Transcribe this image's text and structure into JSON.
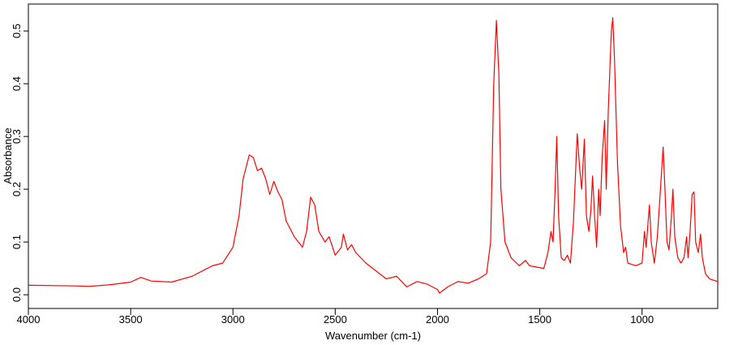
{
  "chart_data": {
    "type": "line",
    "xlabel": "Wavenumber (cm-1)",
    "ylabel": "Absorbance",
    "x": [
      4000,
      3800,
      3700,
      3600,
      3500,
      3450,
      3400,
      3300,
      3200,
      3100,
      3050,
      3000,
      2970,
      2950,
      2920,
      2900,
      2880,
      2860,
      2840,
      2820,
      2800,
      2780,
      2760,
      2740,
      2700,
      2660,
      2640,
      2620,
      2600,
      2580,
      2550,
      2530,
      2500,
      2470,
      2460,
      2440,
      2420,
      2400,
      2350,
      2300,
      2250,
      2200,
      2150,
      2100,
      2050,
      2000,
      1990,
      1950,
      1900,
      1850,
      1800,
      1760,
      1740,
      1725,
      1712,
      1700,
      1690,
      1670,
      1640,
      1600,
      1570,
      1550,
      1480,
      1460,
      1445,
      1435,
      1425,
      1417,
      1408,
      1395,
      1380,
      1365,
      1350,
      1335,
      1317,
      1305,
      1295,
      1282,
      1272,
      1260,
      1250,
      1242,
      1232,
      1222,
      1212,
      1205,
      1195,
      1183,
      1175,
      1165,
      1150,
      1143,
      1135,
      1120,
      1105,
      1090,
      1080,
      1070,
      1030,
      1000,
      988,
      980,
      964,
      955,
      940,
      925,
      910,
      897,
      888,
      878,
      868,
      858,
      849,
      840,
      825,
      810,
      795,
      782,
      775,
      765,
      755,
      746,
      738,
      725,
      714,
      705,
      690,
      670,
      630
    ],
    "series": [
      {
        "color": "#ff0000",
        "values": [
          0.018,
          0.017,
          0.016,
          0.019,
          0.024,
          0.033,
          0.026,
          0.024,
          0.035,
          0.055,
          0.06,
          0.09,
          0.15,
          0.22,
          0.265,
          0.26,
          0.235,
          0.24,
          0.22,
          0.19,
          0.215,
          0.195,
          0.18,
          0.14,
          0.11,
          0.09,
          0.12,
          0.185,
          0.17,
          0.12,
          0.1,
          0.11,
          0.075,
          0.09,
          0.115,
          0.085,
          0.095,
          0.08,
          0.06,
          0.045,
          0.03,
          0.035,
          0.015,
          0.025,
          0.02,
          0.01,
          0.003,
          0.015,
          0.025,
          0.022,
          0.03,
          0.04,
          0.1,
          0.4,
          0.52,
          0.42,
          0.2,
          0.1,
          0.07,
          0.055,
          0.065,
          0.055,
          0.05,
          0.08,
          0.12,
          0.1,
          0.2,
          0.3,
          0.15,
          0.07,
          0.065,
          0.075,
          0.06,
          0.14,
          0.305,
          0.24,
          0.2,
          0.295,
          0.15,
          0.12,
          0.16,
          0.225,
          0.15,
          0.09,
          0.2,
          0.15,
          0.26,
          0.33,
          0.2,
          0.35,
          0.5,
          0.525,
          0.45,
          0.25,
          0.13,
          0.08,
          0.09,
          0.06,
          0.055,
          0.06,
          0.12,
          0.09,
          0.17,
          0.1,
          0.06,
          0.11,
          0.2,
          0.28,
          0.2,
          0.1,
          0.085,
          0.14,
          0.2,
          0.11,
          0.07,
          0.06,
          0.07,
          0.11,
          0.07,
          0.12,
          0.19,
          0.195,
          0.1,
          0.08,
          0.115,
          0.07,
          0.04,
          0.03,
          0.025
        ]
      }
    ],
    "xlim": [
      4000,
      630
    ],
    "xticks": [
      4000,
      3500,
      3000,
      2500,
      2000,
      1500,
      1000
    ],
    "ylim": [
      -0.026,
      0.551
    ],
    "yticks": [
      {
        "value": 0,
        "label": "0.0"
      },
      0.1,
      0.2,
      0.3,
      0.4,
      0.5
    ]
  }
}
